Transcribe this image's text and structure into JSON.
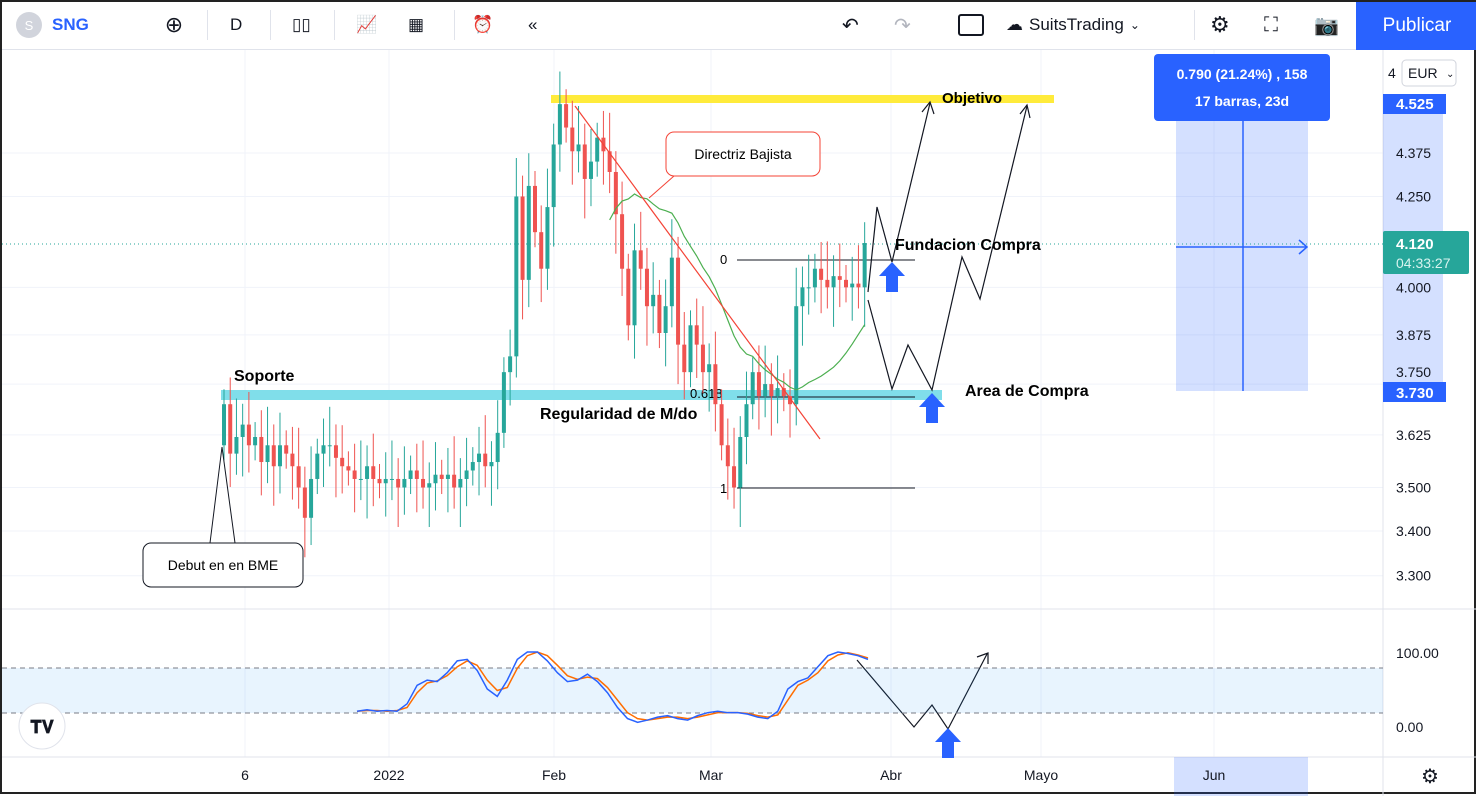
{
  "header": {
    "symbol_initial": "S",
    "symbol": "SNG",
    "interval": "D",
    "layout_name": "SuitsTrading",
    "publish": "Publicar"
  },
  "colors": {
    "up": "#26a69a",
    "down": "#ef5350",
    "accent": "#2962ff",
    "ma": "#4caf50",
    "stoch_k": "#2962ff",
    "stoch_d": "#ff6d00"
  },
  "price_axis": {
    "currency": "EUR",
    "ticks": [
      "4.375",
      "4.250",
      "4.000",
      "3.875",
      "3.750",
      "3.625",
      "3.500",
      "3.400",
      "3.300"
    ],
    "top_partial": "4",
    "label_high": "4.525",
    "label_last": "4.120",
    "countdown": "04:33:27",
    "label_low": "3.730"
  },
  "oscillator_axis": {
    "ticks": [
      "100.00",
      "0.00"
    ]
  },
  "time_axis": {
    "ticks": [
      "6",
      "2022",
      "Feb",
      "Mar",
      "Abr",
      "Mayo"
    ],
    "highlight": "Jun"
  },
  "measure": {
    "line1": "0.790 (21.24%) , 158",
    "line2": "17 barras, 23d"
  },
  "annotations": {
    "objetivo": "Objetivo",
    "soporte": "Soporte",
    "regularidad": "Regularidad de M/do",
    "directriz": "Directriz Bajista",
    "debut": "Debut en en BME",
    "fundacion": "Fundacion Compra",
    "area": "Area de Compra",
    "fib0": "0",
    "fib618": "0.618",
    "fib1": "1"
  },
  "chart_data": {
    "type": "candlestick",
    "scale": "log",
    "closes": [
      3.7,
      3.58,
      3.62,
      3.65,
      3.6,
      3.62,
      3.56,
      3.6,
      3.55,
      3.6,
      3.58,
      3.55,
      3.5,
      3.43,
      3.52,
      3.58,
      3.6,
      3.6,
      3.57,
      3.55,
      3.54,
      3.52,
      3.52,
      3.55,
      3.52,
      3.51,
      3.52,
      3.52,
      3.5,
      3.52,
      3.54,
      3.52,
      3.5,
      3.51,
      3.53,
      3.52,
      3.53,
      3.5,
      3.52,
      3.54,
      3.56,
      3.58,
      3.55,
      3.56,
      3.63,
      3.78,
      3.82,
      4.25,
      4.02,
      4.28,
      4.15,
      4.05,
      4.22,
      4.4,
      4.52,
      4.45,
      4.38,
      4.4,
      4.3,
      4.35,
      4.42,
      4.38,
      4.32,
      4.2,
      4.05,
      3.9,
      4.1,
      4.05,
      3.95,
      3.98,
      3.88,
      3.95,
      4.08,
      3.85,
      3.78,
      3.9,
      3.85,
      3.78,
      3.8,
      3.7,
      3.6,
      3.55,
      3.5,
      3.62,
      3.7,
      3.78,
      3.72,
      3.75,
      3.72,
      3.74,
      3.72,
      3.7,
      3.95,
      4.0,
      4.0,
      4.05,
      4.02,
      4.0,
      4.03,
      4.02,
      4.0,
      4.01,
      4.0,
      4.12
    ],
    "stoch_k": [
      20,
      22,
      20,
      21,
      20,
      30,
      55,
      62,
      60,
      72,
      88,
      90,
      75,
      50,
      40,
      62,
      90,
      100,
      100,
      88,
      72,
      60,
      62,
      70,
      60,
      45,
      25,
      10,
      5,
      8,
      12,
      14,
      10,
      8,
      14,
      18,
      20,
      18,
      18,
      16,
      12,
      10,
      20,
      50,
      60,
      65,
      80,
      95,
      100,
      98,
      95,
      90
    ],
    "stoch_d": [
      20,
      21,
      21,
      20,
      21,
      25,
      45,
      58,
      61,
      68,
      80,
      88,
      82,
      62,
      48,
      52,
      78,
      95,
      100,
      95,
      82,
      68,
      63,
      66,
      64,
      52,
      35,
      18,
      10,
      8,
      10,
      12,
      12,
      10,
      12,
      15,
      18,
      18,
      18,
      17,
      14,
      12,
      15,
      35,
      55,
      62,
      72,
      88,
      96,
      99,
      96,
      92
    ]
  }
}
